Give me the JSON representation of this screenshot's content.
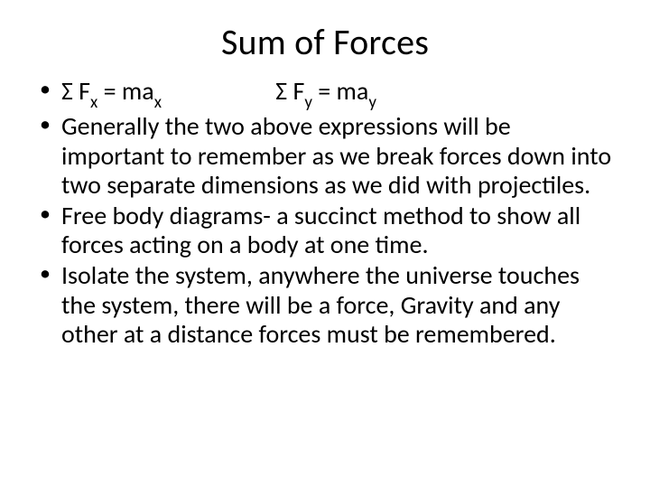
{
  "title": "Sum of Forces",
  "bullets": {
    "b1": {
      "seg1_a": "Σ F",
      "seg1_sub": "x",
      "seg1_b": " = ma",
      "seg1_sub2": "x",
      "seg2_a": "Σ F",
      "seg2_sub": "y",
      "seg2_b": " = ma",
      "seg2_sub2": "y"
    },
    "b2": "Generally the two above expressions will be important to remember as we break forces down into two separate dimensions as we did with projectiles.",
    "b3": "Free body diagrams-  a succinct method to show all forces acting on a body at one time.",
    "b4": "Isolate the system, anywhere the universe touches the system, there will be a force, Gravity and any other at a distance forces must be remembered."
  },
  "colors": {
    "background": "#ffffff",
    "text": "#000000"
  },
  "typography": {
    "title_fontsize": 40,
    "body_fontsize": 28,
    "font_family": "Calibri"
  }
}
